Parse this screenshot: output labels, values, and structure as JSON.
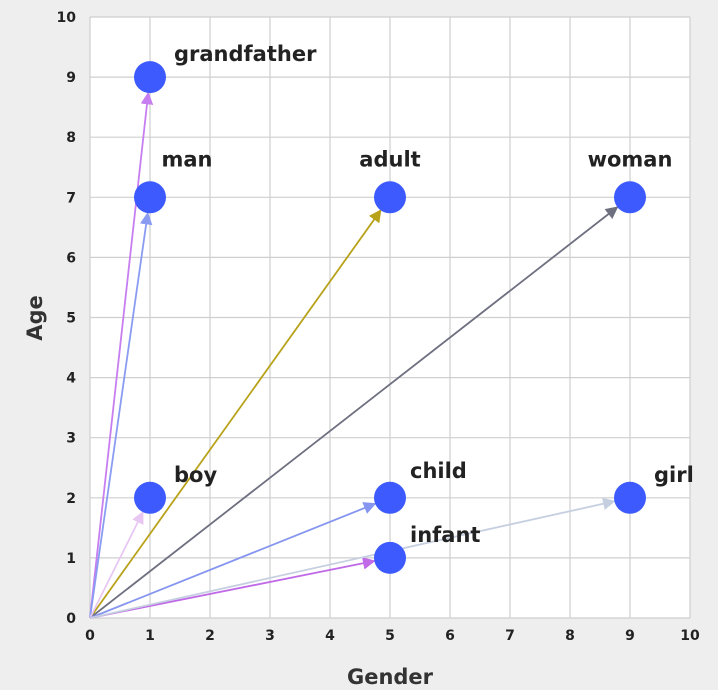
{
  "chart_data": {
    "type": "scatter",
    "title": "",
    "xlabel": "Gender",
    "ylabel": "Age",
    "xlim": [
      0,
      10
    ],
    "ylim": [
      0,
      10
    ],
    "xticks": [
      "0",
      "1",
      "2",
      "3",
      "4",
      "5",
      "6",
      "7",
      "8",
      "9",
      "10"
    ],
    "yticks": [
      "0",
      "1",
      "2",
      "3",
      "4",
      "5",
      "6",
      "7",
      "8",
      "9",
      "10"
    ],
    "grid": true,
    "point_color": "#3d5afe",
    "points": [
      {
        "label": "grandfather",
        "x": 1,
        "y": 9,
        "arrow_color": "#c77ef0"
      },
      {
        "label": "man",
        "x": 1,
        "y": 7,
        "arrow_color": "#8a9cf2"
      },
      {
        "label": "adult",
        "x": 5,
        "y": 7,
        "arrow_color": "#b8a21a"
      },
      {
        "label": "woman",
        "x": 9,
        "y": 7,
        "arrow_color": "#6e7080"
      },
      {
        "label": "boy",
        "x": 1,
        "y": 2,
        "arrow_color": "#e8c8f2"
      },
      {
        "label": "child",
        "x": 5,
        "y": 2,
        "arrow_color": "#8595f0"
      },
      {
        "label": "infant",
        "x": 5,
        "y": 1,
        "arrow_color": "#c06ae8"
      },
      {
        "label": "girl",
        "x": 9,
        "y": 2,
        "arrow_color": "#c6cfe0"
      }
    ]
  }
}
